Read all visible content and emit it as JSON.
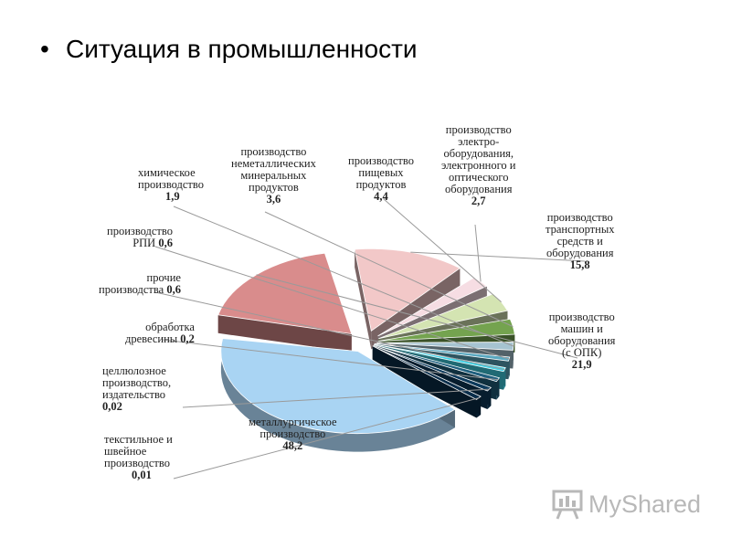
{
  "slide": {
    "bullet": "•",
    "title": "Ситуация в промышленности"
  },
  "watermark": {
    "text": "MyShared",
    "icon": "presentation-board-icon"
  },
  "chart_data": {
    "type": "pie",
    "title": "",
    "slices": [
      {
        "label": "металлургическое производство",
        "value": 48.2,
        "value_text": "48,2",
        "color": "#a9d4f3"
      },
      {
        "label": "производство машин и оборудования (с ОПК)",
        "value": 21.9,
        "value_text": "21,9",
        "color": "#d98c8c"
      },
      {
        "label": "производство транспортных средств и оборудования",
        "value": 15.8,
        "value_text": "15,8",
        "color": "#f2c8c8"
      },
      {
        "label": "производство электрооборудования, электронного и оптического оборудования",
        "value": 2.7,
        "value_text": "2,7",
        "color": "#f6dde3"
      },
      {
        "label": "производство пищевых продуктов",
        "value": 4.4,
        "value_text": "4,4",
        "color": "#d4e4b2"
      },
      {
        "label": "производство неметаллических минеральных продуктов",
        "value": 3.6,
        "value_text": "3,6",
        "color": "#74a34f"
      },
      {
        "label": "химическое производство",
        "value": 1.9,
        "value_text": "1,9",
        "color": "#a6c3d1"
      },
      {
        "label": "производство РПИ",
        "value": 0.6,
        "value_text": "0,6",
        "color": "#5aa8c0"
      },
      {
        "label": "прочие производства",
        "value": 0.6,
        "value_text": "0,6",
        "color": "#40d4e8"
      },
      {
        "label": "обработка древесины",
        "value": 0.2,
        "value_text": "0,2",
        "color": "#1f5f7e"
      },
      {
        "label": "целлюлозное производство, издательство",
        "value": 0.02,
        "value_text": "0,02",
        "color": "#0d3a5c"
      },
      {
        "label": "текстильное и швейное производство",
        "value": 0.01,
        "value_text": "0,01",
        "color": "#0a2d4a"
      }
    ]
  },
  "labels": {
    "metal": {
      "l1": "металлургическое",
      "l2": "производство"
    },
    "mach": {
      "l1": "производство",
      "l2": "машин и",
      "l3": "оборудования",
      "l4": "(с ОПК)"
    },
    "trans": {
      "l1": "производство",
      "l2": "транспортных",
      "l3": "средств и",
      "l4": "оборудования"
    },
    "elec": {
      "l1": "производство",
      "l2": "электро-",
      "l3": "оборудования,",
      "l4": "электронного и",
      "l5": "оптического",
      "l6": "оборудования"
    },
    "food": {
      "l1": "производство",
      "l2": "пищевых",
      "l3": "продуктов"
    },
    "nonmet": {
      "l1": "производство",
      "l2": "неметаллических",
      "l3": "минеральных",
      "l4": "продуктов"
    },
    "chem": {
      "l1": "химическое",
      "l2": "производство"
    },
    "rpi": {
      "l1": "производство",
      "l2": "РПИ"
    },
    "other": {
      "l1": "прочие",
      "l2": "производства"
    },
    "wood": {
      "l1": "обработка",
      "l2": "древесины"
    },
    "pulp": {
      "l1": "целлюлозное",
      "l2": "производство,",
      "l3": "издательство"
    },
    "text": {
      "l1": "текстильное и",
      "l2": "швейное",
      "l3": "производство"
    }
  }
}
